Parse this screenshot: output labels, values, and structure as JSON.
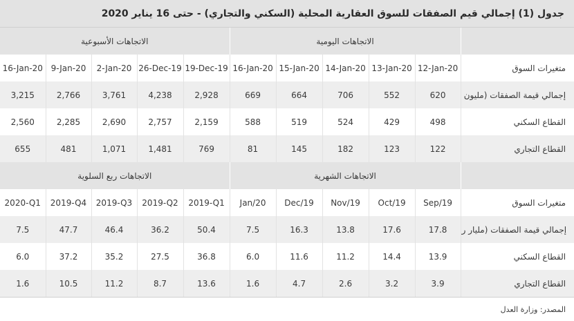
{
  "title": "جدول (1) إجمالي قيم الصفقات للسوق العقارية المحلية (السكني والتجاري) - حتى 16 يناير 2020",
  "section1": {
    "weekly_label": "الاتجاهات الأسبوعية",
    "daily_label": "الاتجاهات اليومية",
    "columns": [
      "16-Jan-20",
      "9-Jan-20",
      "2-Jan-20",
      "26-Dec-19",
      "19-Dec-19",
      "16-Jan-20",
      "15-Jan-20",
      "14-Jan-20",
      "13-Jan-20",
      "12-Jan-20"
    ],
    "header_label": "متغيرات السوق",
    "rows": [
      {
        "label": "إجمالي قيمة الصفقات (مليون ريال)",
        "values": [
          "3,215",
          "2,766",
          "3,761",
          "4,238",
          "2,928",
          "669",
          "664",
          "706",
          "552",
          "620"
        ]
      },
      {
        "label": "القطاع السكني",
        "values": [
          "2,560",
          "2,285",
          "2,690",
          "2,757",
          "2,159",
          "588",
          "519",
          "524",
          "429",
          "498"
        ]
      },
      {
        "label": "القطاع التجاري",
        "values": [
          "655",
          "481",
          "1,071",
          "1,481",
          "769",
          "81",
          "145",
          "182",
          "123",
          "122"
        ]
      }
    ]
  },
  "section2": {
    "quarterly_label": "الاتجاهات ربع السلوية",
    "monthly_label": "الاتجاهات الشهرية",
    "columns": [
      "2020-Q1",
      "2019-Q4",
      "2019-Q3",
      "2019-Q2",
      "2019-Q1",
      "Jan/20",
      "Dec/19",
      "Nov/19",
      "Oct/19",
      "Sep/19"
    ],
    "header_label": "متغيرات السوق",
    "rows": [
      {
        "label": "إجمالي قيمة الصفقات (مليار ريال)",
        "values": [
          "7.5",
          "47.7",
          "46.4",
          "36.2",
          "50.4",
          "7.5",
          "16.3",
          "13.8",
          "17.6",
          "17.8"
        ]
      },
      {
        "label": "القطاع السكني",
        "values": [
          "6.0",
          "37.2",
          "35.2",
          "27.5",
          "36.8",
          "6.0",
          "11.6",
          "11.2",
          "14.4",
          "13.9"
        ]
      },
      {
        "label": "القطاع التجاري",
        "values": [
          "1.6",
          "10.5",
          "11.2",
          "8.7",
          "13.6",
          "1.6",
          "4.7",
          "2.6",
          "3.2",
          "3.9"
        ]
      }
    ]
  },
  "source": "المصدر: وزارة العدل"
}
